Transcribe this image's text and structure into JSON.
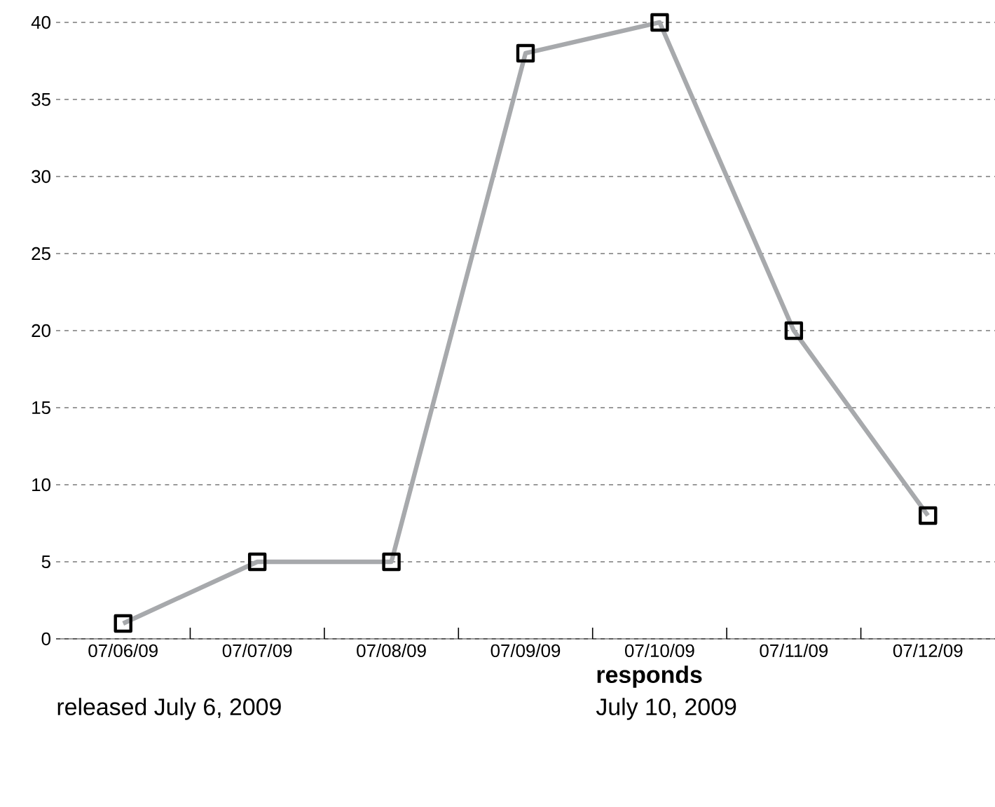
{
  "chart_data": {
    "type": "line",
    "categories": [
      "07/06/09",
      "07/07/09",
      "07/08/09",
      "07/09/09",
      "07/10/09",
      "07/11/09",
      "07/12/09"
    ],
    "series": [
      {
        "color": "#a7a9ac",
        "values": [
          1,
          5,
          5,
          38,
          40,
          20,
          8
        ]
      }
    ],
    "ylim": [
      0,
      40
    ],
    "yticks": [
      0,
      5,
      10,
      15,
      20,
      25,
      30,
      35,
      40
    ],
    "grid": "y",
    "marker": "square",
    "line_style": "solid",
    "annotations": [
      "released July 6, 2009",
      "**responds**",
      "July 10, 2009"
    ]
  }
}
